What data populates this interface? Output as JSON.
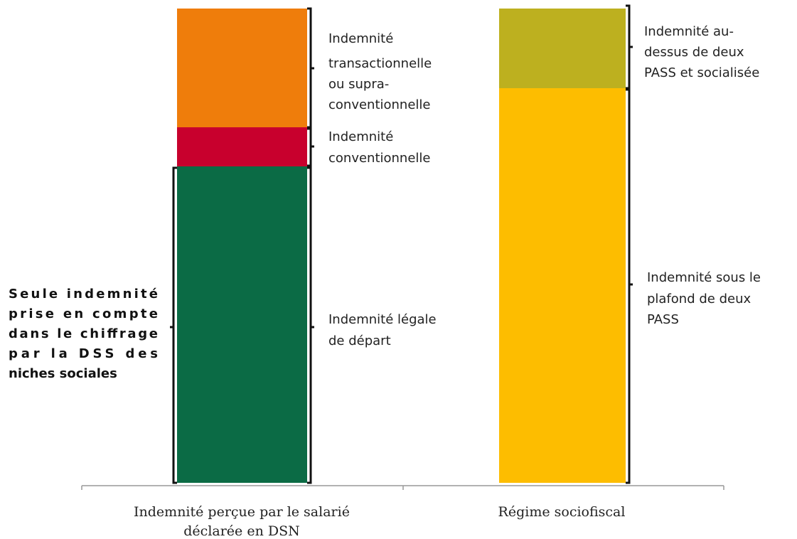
{
  "annotation": {
    "lines": [
      "Seule indemnité",
      "prise en compte",
      "dans le chiffrage",
      "par la DSS des",
      "niches sociales"
    ]
  },
  "columns": [
    {
      "label": [
        "Indemnité perçue par le salarié",
        "déclarée en DSN"
      ],
      "segments": [
        {
          "label": [
            "Indemnité",
            "transactionnelle",
            "ou supra-",
            "conventionnelle"
          ]
        },
        {
          "label": [
            "Indemnité",
            "conventionnelle"
          ]
        },
        {
          "label": [
            "Indemnité légale",
            "de départ"
          ]
        }
      ]
    },
    {
      "label": [
        "Régime sociofiscal"
      ],
      "segments": [
        {
          "label": [
            "Indemnité au-",
            "dessus de deux",
            "PASS et socialisée"
          ]
        },
        {
          "label": [
            "Indemnité sous le",
            "plafond de deux",
            "PASS"
          ]
        }
      ]
    }
  ]
}
